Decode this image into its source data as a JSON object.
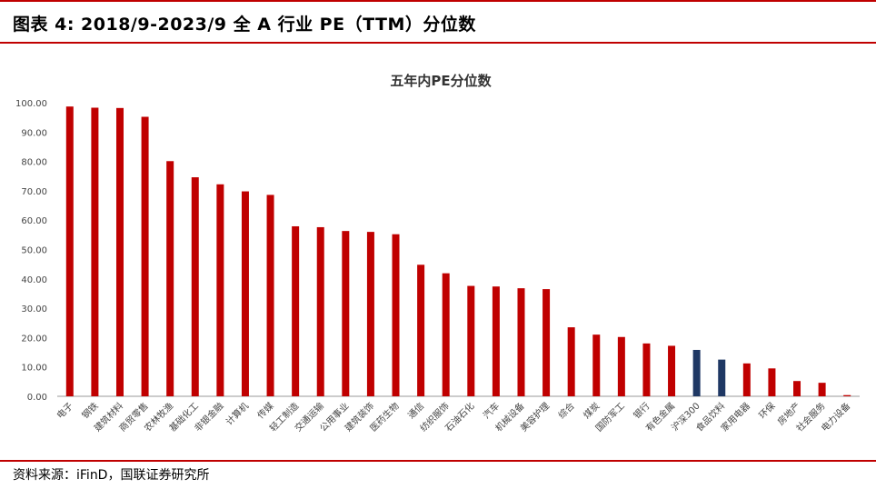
{
  "header": {
    "figure_title": "图表 4: 2018/9-2023/9 全 A 行业 PE（TTM）分位数"
  },
  "footer": {
    "source": "资料来源：iFinD，国联证券研究所"
  },
  "colors": {
    "accent_rule": "#c00000",
    "bar_default": "#c00000",
    "bar_highlight": "#1f3864"
  },
  "chart_data": {
    "type": "bar",
    "title": "五年内PE分位数",
    "xlabel": "",
    "ylabel": "",
    "ylim": [
      0,
      100
    ],
    "yticks": [
      "0.00",
      "10.00",
      "20.00",
      "30.00",
      "40.00",
      "50.00",
      "60.00",
      "70.00",
      "80.00",
      "90.00",
      "100.00"
    ],
    "grid": false,
    "legend": "none",
    "categories": [
      "电子",
      "钢铁",
      "建筑材料",
      "商贸零售",
      "农林牧渔",
      "基础化工",
      "非银金融",
      "计算机",
      "传媒",
      "轻工制造",
      "交通运输",
      "公用事业",
      "建筑装饰",
      "医药生物",
      "通信",
      "纺织服饰",
      "石油石化",
      "汽车",
      "机械设备",
      "美容护理",
      "综合",
      "煤炭",
      "国防军工",
      "银行",
      "有色金属",
      "沪深300",
      "食品饮料",
      "家用电器",
      "环保",
      "房地产",
      "社会服务",
      "电力设备"
    ],
    "values": [
      98.7,
      98.3,
      98.2,
      95.2,
      80.1,
      74.6,
      72.2,
      69.8,
      68.6,
      57.9,
      57.6,
      56.3,
      56.0,
      55.2,
      44.8,
      41.9,
      37.6,
      37.4,
      36.8,
      36.5,
      23.5,
      21.0,
      20.2,
      18.0,
      17.2,
      15.8,
      12.5,
      11.2,
      9.5,
      5.2,
      4.6,
      0.4
    ],
    "highlight": [
      "沪深300",
      "食品饮料"
    ]
  }
}
